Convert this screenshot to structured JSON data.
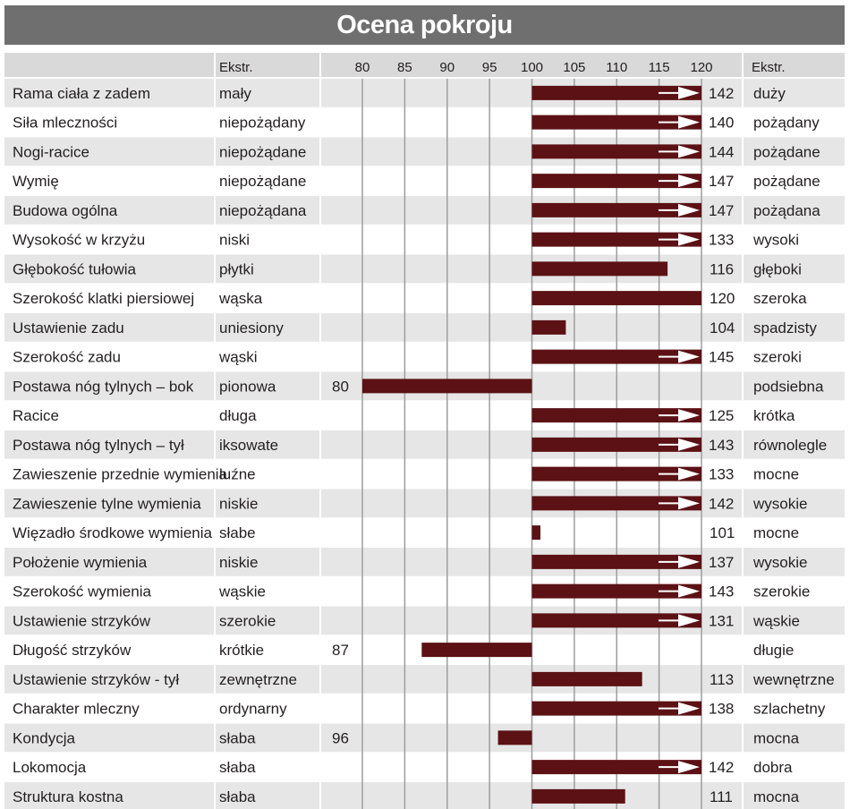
{
  "title": "Ocena pokroju",
  "header": {
    "left_extreme_label": "Ekstr.",
    "right_extreme_label": "Ekstr."
  },
  "colors": {
    "bar": "#5c1115",
    "title_bg": "#706f6f",
    "row_shade": "#e6e6e6",
    "header_bg": "#d9d9d9",
    "grid": "#9d9d9d"
  },
  "chart_data": {
    "type": "bar",
    "orientation": "horizontal",
    "title": "Ocena pokroju",
    "baseline": 100,
    "xlim": [
      80,
      120
    ],
    "xticks": [
      80,
      85,
      90,
      95,
      100,
      105,
      110,
      115,
      120
    ],
    "overflow_arrow_above": 120,
    "grid": true,
    "rows": [
      {
        "trait": "Rama ciała z zadem",
        "low": "mały",
        "value": 142,
        "high": "duży"
      },
      {
        "trait": "Siła mleczności",
        "low": "niepożądany",
        "value": 140,
        "high": "pożądany"
      },
      {
        "trait": "Nogi-racice",
        "low": "niepożądane",
        "value": 144,
        "high": "pożądane"
      },
      {
        "trait": "Wymię",
        "low": "niepożądane",
        "value": 147,
        "high": "pożądane"
      },
      {
        "trait": "Budowa ogólna",
        "low": "niepożądana",
        "value": 147,
        "high": "pożądana"
      },
      {
        "trait": "Wysokość w krzyżu",
        "low": "niski",
        "value": 133,
        "high": "wysoki"
      },
      {
        "trait": "Głębokość tułowia",
        "low": "płytki",
        "value": 116,
        "high": "głęboki"
      },
      {
        "trait": "Szerokość klatki piersiowej",
        "low": "wąska",
        "value": 120,
        "high": "szeroka"
      },
      {
        "trait": "Ustawienie zadu",
        "low": "uniesiony",
        "value": 104,
        "high": "spadzisty"
      },
      {
        "trait": "Szerokość zadu",
        "low": "wąski",
        "value": 145,
        "high": "szeroki"
      },
      {
        "trait": "Postawa nóg tylnych –  bok",
        "low": "pionowa",
        "value": 80,
        "high": "podsiebna"
      },
      {
        "trait": "Racice",
        "low": "długa",
        "value": 125,
        "high": "krótka"
      },
      {
        "trait": "Postawa nóg tylnych –  tył",
        "low": "iksowate",
        "value": 143,
        "high": "równolegle"
      },
      {
        "trait": "Zawieszenie przednie wymienia",
        "low": "luźne",
        "value": 133,
        "high": "mocne"
      },
      {
        "trait": "Zawieszenie tylne wymienia",
        "low": "niskie",
        "value": 142,
        "high": "wysokie"
      },
      {
        "trait": "Więzadło środkowe wymienia",
        "low": "słabe",
        "value": 101,
        "high": "mocne"
      },
      {
        "trait": "Położenie wymienia",
        "low": "niskie",
        "value": 137,
        "high": "wysokie"
      },
      {
        "trait": "Szerokość wymienia",
        "low": "wąskie",
        "value": 143,
        "high": "szerokie"
      },
      {
        "trait": "Ustawienie strzyków",
        "low": "szerokie",
        "value": 131,
        "high": "wąskie"
      },
      {
        "trait": "Długość strzyków",
        "low": "krótkie",
        "value": 87,
        "high": "długie"
      },
      {
        "trait": "Ustawienie strzyków - tył",
        "low": "zewnętrzne",
        "value": 113,
        "high": "wewnętrzne"
      },
      {
        "trait": "Charakter mleczny",
        "low": "ordynarny",
        "value": 138,
        "high": "szlachetny"
      },
      {
        "trait": "Kondycja",
        "low": "słaba",
        "value": 96,
        "high": "mocna"
      },
      {
        "trait": "Lokomocja",
        "low": "słaba",
        "value": 142,
        "high": "dobra"
      },
      {
        "trait": "Struktura kostna",
        "low": "słaba",
        "value": 111,
        "high": "mocna"
      }
    ]
  }
}
